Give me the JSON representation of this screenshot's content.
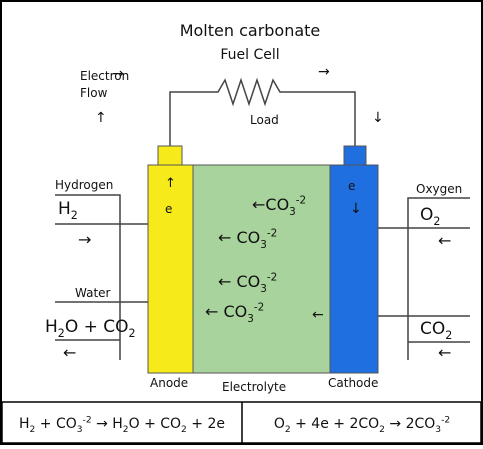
{
  "title": "Molten carbonate",
  "subtitle": "Fuel Cell",
  "labels": [
    {
      "parts": [
        {
          "t": "Electron"
        }
      ]
    },
    {
      "parts": [
        {
          "t": "Flow"
        }
      ]
    },
    {
      "parts": [
        {
          "t": "→"
        }
      ]
    },
    {
      "parts": [
        {
          "t": "↑"
        }
      ]
    },
    {
      "parts": [
        {
          "t": "→"
        }
      ]
    },
    {
      "parts": [
        {
          "t": "↓"
        }
      ]
    },
    {
      "parts": [
        {
          "t": "Load"
        }
      ]
    },
    {
      "parts": [
        {
          "t": "Hydrogen"
        }
      ]
    },
    {
      "parts": [
        {
          "t": "H"
        },
        {
          "sub": "2"
        }
      ]
    },
    {
      "parts": [
        {
          "t": "→"
        }
      ]
    },
    {
      "parts": [
        {
          "t": "Water"
        }
      ]
    },
    {
      "parts": [
        {
          "t": "H"
        },
        {
          "sub": "2"
        },
        {
          "t": "O + CO"
        },
        {
          "sub": "2"
        }
      ]
    },
    {
      "parts": [
        {
          "t": "←"
        }
      ]
    },
    {
      "parts": [
        {
          "t": "Oxygen"
        }
      ]
    },
    {
      "parts": [
        {
          "t": "O"
        },
        {
          "sub": "2"
        }
      ]
    },
    {
      "parts": [
        {
          "t": "←"
        }
      ]
    },
    {
      "parts": [
        {
          "t": "CO"
        },
        {
          "sub": "2"
        }
      ]
    },
    {
      "parts": [
        {
          "t": "←"
        }
      ]
    },
    {
      "parts": [
        {
          "t": "↑"
        }
      ]
    },
    {
      "parts": [
        {
          "t": "e"
        }
      ]
    },
    {
      "parts": [
        {
          "t": "e"
        }
      ]
    },
    {
      "parts": [
        {
          "t": "↓"
        }
      ]
    },
    {
      "parts": [
        {
          "t": "←CO"
        },
        {
          "sub": "3"
        },
        {
          "sup": "-2"
        }
      ]
    },
    {
      "parts": [
        {
          "t": "← CO"
        },
        {
          "sub": "3"
        },
        {
          "sup": "-2"
        }
      ]
    },
    {
      "parts": [
        {
          "t": "← CO"
        },
        {
          "sub": "3"
        },
        {
          "sup": "-2"
        }
      ]
    },
    {
      "parts": [
        {
          "t": "← CO"
        },
        {
          "sub": "3"
        },
        {
          "sup": "-2"
        }
      ]
    },
    {
      "parts": [
        {
          "t": "←"
        }
      ]
    },
    {
      "parts": [
        {
          "t": "Anode"
        }
      ]
    },
    {
      "parts": [
        {
          "t": "Electrolyte"
        }
      ]
    },
    {
      "parts": [
        {
          "t": "Cathode"
        }
      ]
    }
  ],
  "equations": [
    {
      "parts": [
        {
          "t": "H"
        },
        {
          "sub": "2"
        },
        {
          "t": " + CO"
        },
        {
          "sub": "3"
        },
        {
          "sup": "-2"
        },
        {
          "t": " → H"
        },
        {
          "sub": "2"
        },
        {
          "t": "O + CO"
        },
        {
          "sub": "2"
        },
        {
          "t": " + 2e"
        }
      ]
    },
    {
      "parts": [
        {
          "t": "O"
        },
        {
          "sub": "2"
        },
        {
          "t": " + 4e + 2CO"
        },
        {
          "sub": "2"
        },
        {
          "t": " → 2CO"
        },
        {
          "sub": "3"
        },
        {
          "sup": "-2"
        }
      ]
    }
  ]
}
